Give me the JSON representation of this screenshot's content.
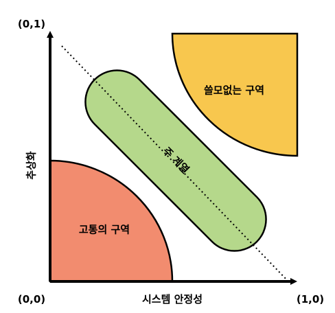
{
  "axes": {
    "origin_label": "(0,0)",
    "x_end_label": "(1,0)",
    "y_end_label": "(0,1)",
    "x_title": "시스템 안정성",
    "y_title": "추상화"
  },
  "zones": {
    "useless": {
      "label": "쓸모없는 구역",
      "color": "#F8C74E"
    },
    "pain": {
      "label": "고통의 구역",
      "color": "#F28C6F"
    },
    "main_sequence": {
      "label": "주 계열",
      "color": "#B5D88B"
    }
  },
  "colors": {
    "axis": "#000000",
    "outline": "#000000"
  }
}
